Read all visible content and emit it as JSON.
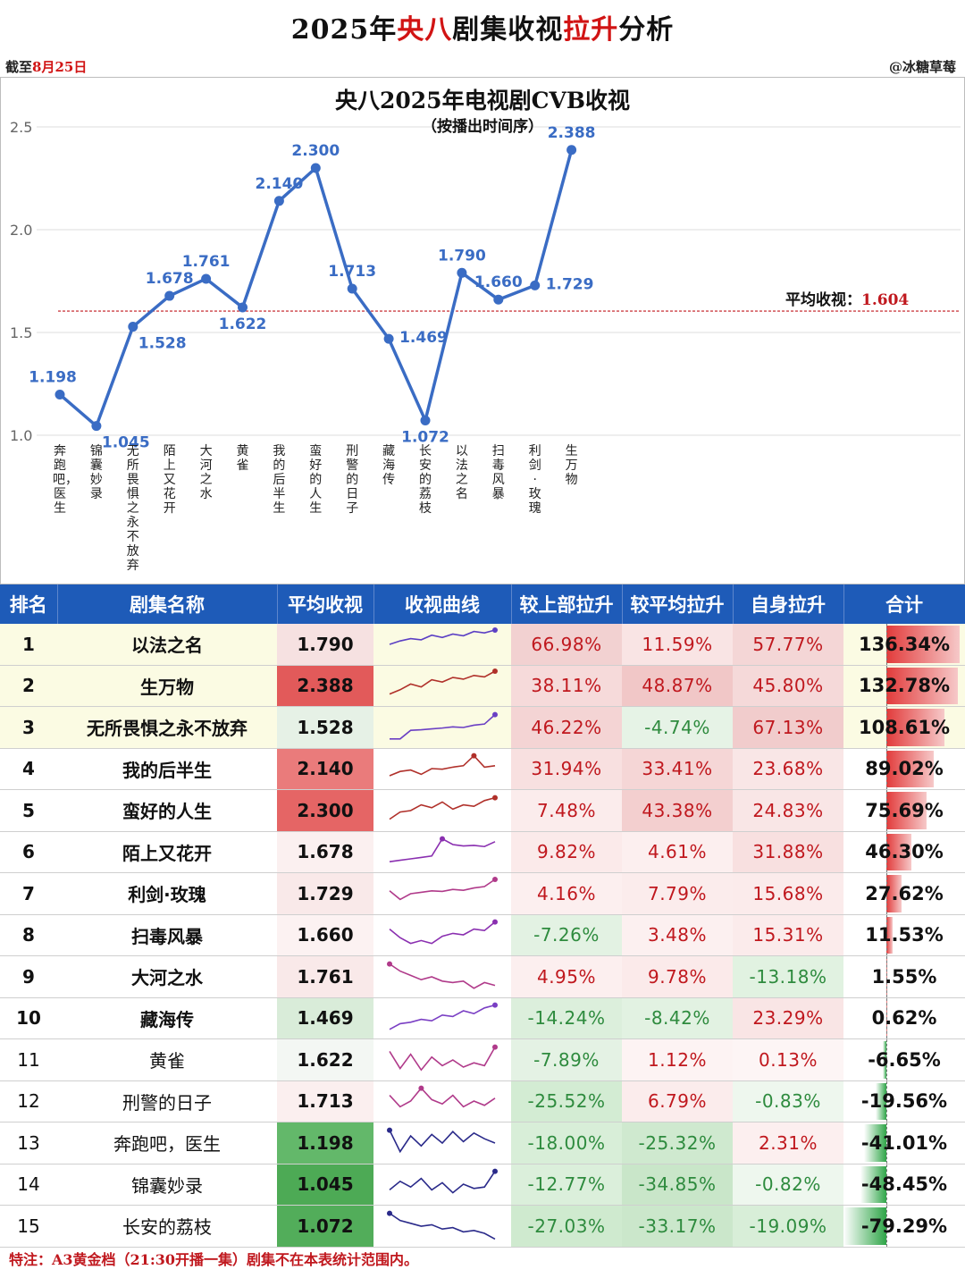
{
  "header": {
    "title_parts": [
      "2025年",
      "央八",
      "剧集收视",
      "拉升",
      "分析"
    ],
    "date_prefix": "截至",
    "date_value": "8月25日",
    "credit": "@冰糖草莓"
  },
  "chart_data": {
    "type": "line",
    "title": "央八2025年电视剧CVB收视",
    "subtitle": "（按播出时间序）",
    "categories": [
      "奔跑吧，医生",
      "锦囊妙录",
      "无所畏惧之永不放弃",
      "陌上又花开",
      "大河之水",
      "黄雀",
      "我的后半生",
      "蛮好的人生",
      "刑警的日子",
      "藏海传",
      "长安的荔枝",
      "以法之名",
      "扫毒风暴",
      "利剑·玫瑰",
      "生万物"
    ],
    "values": [
      1.198,
      1.045,
      1.528,
      1.678,
      1.761,
      1.622,
      2.14,
      2.3,
      1.713,
      1.469,
      1.072,
      1.79,
      1.66,
      1.729,
      2.388
    ],
    "labels": [
      "1.198",
      "1.045",
      "1.528",
      "1.678",
      "1.761",
      "1.622",
      "2.140",
      "2.300",
      "1.713",
      "1.469",
      "1.072",
      "1.790",
      "1.660",
      "1.729",
      "2.388"
    ],
    "label_pos": [
      "above",
      "below",
      "below",
      "above",
      "above",
      "below",
      "above",
      "above",
      "above",
      "right",
      "below",
      "above",
      "above",
      "right",
      "above"
    ],
    "yticks": [
      "1.0",
      "1.5",
      "2.0",
      "2.5"
    ],
    "ylim": [
      1.0,
      2.5
    ],
    "grid": true,
    "average": 1.604,
    "average_label": "平均收视：",
    "average_value": "1.604",
    "line_color": "#3a6cc4",
    "avg_color": "#c0181e"
  },
  "table": {
    "headers": [
      "排名",
      "剧集名称",
      "平均收视",
      "收视曲线",
      "较上部拉升",
      "较平均拉升",
      "自身拉升",
      "合计"
    ],
    "rows": [
      {
        "rank": "1",
        "name": "以法之名",
        "rating": "1.790",
        "prev": "66.98%",
        "avg": "11.59%",
        "self": "57.77%",
        "total": "136.34%",
        "total_v": 136.34,
        "rating_color": "#f6e1e1",
        "prev_color": "#f2d1d1",
        "avg_color": "#f9e4e4",
        "self_color": "#f4d6d6",
        "row_bg": "#fbfbe3",
        "spark": [
          0.5,
          0.62,
          0.7,
          0.66,
          0.82,
          0.74,
          0.86,
          0.8,
          0.95,
          0.9,
          1.0
        ],
        "spark_color": "#5b3fc4",
        "name_color": "#000",
        "bold": true
      },
      {
        "rank": "2",
        "name": "生万物",
        "rating": "2.388",
        "prev": "38.11%",
        "avg": "48.87%",
        "self": "45.80%",
        "total": "132.78%",
        "total_v": 132.78,
        "rating_color": "#e25a5a",
        "prev_color": "#f6dada",
        "avg_color": "#f1c7c7",
        "self_color": "#f5d9d9",
        "row_bg": "#fbfbe3",
        "spark": [
          0.2,
          0.35,
          0.55,
          0.45,
          0.7,
          0.62,
          0.78,
          0.72,
          0.85,
          0.8,
          1.0
        ],
        "spark_color": "#b0302a",
        "name_color": "#000",
        "bold": true
      },
      {
        "rank": "3",
        "name": "无所畏惧之永不放弃",
        "rating": "1.528",
        "prev": "46.22%",
        "avg": "-4.74%",
        "self": "67.13%",
        "total": "108.61%",
        "total_v": 108.61,
        "rating_color": "#e6f1e6",
        "prev_color": "#f4d4d4",
        "avg_color": "#e6f3e6",
        "self_color": "#f1cccc",
        "row_bg": "#fbfbe3",
        "spark": [
          0.1,
          0.1,
          0.4,
          0.42,
          0.45,
          0.48,
          0.52,
          0.5,
          0.58,
          0.62,
          0.95
        ],
        "spark_color": "#6a3fc4",
        "name_color": "#000",
        "bold": true
      },
      {
        "rank": "4",
        "name": "我的后半生",
        "rating": "2.140",
        "prev": "31.94%",
        "avg": "33.41%",
        "self": "23.68%",
        "total": "89.02%",
        "total_v": 89.02,
        "rating_color": "#ea7b7b",
        "prev_color": "#f8e0e0",
        "avg_color": "#f5d6d6",
        "self_color": "#f9e6e6",
        "row_bg": "#ffffff",
        "spark": [
          0.25,
          0.4,
          0.45,
          0.3,
          0.5,
          0.48,
          0.55,
          0.6,
          0.95,
          0.55,
          0.6
        ],
        "spark_color": "#b0302a",
        "name_color": "#000",
        "bold": true
      },
      {
        "rank": "5",
        "name": "蛮好的人生",
        "rating": "2.300",
        "prev": "7.48%",
        "avg": "43.38%",
        "self": "24.83%",
        "total": "75.69%",
        "total_v": 75.69,
        "rating_color": "#e56565",
        "prev_color": "#fbecec",
        "avg_color": "#f3cfcf",
        "self_color": "#f9e6e6",
        "row_bg": "#ffffff",
        "spark": [
          0.2,
          0.45,
          0.5,
          0.7,
          0.6,
          0.8,
          0.55,
          0.7,
          0.65,
          0.85,
          0.95
        ],
        "spark_color": "#b0302a",
        "name_color": "#000",
        "bold": true
      },
      {
        "rank": "6",
        "name": "陌上又花开",
        "rating": "1.678",
        "prev": "9.82%",
        "avg": "4.61%",
        "self": "31.88%",
        "total": "46.30%",
        "total_v": 46.3,
        "rating_color": "#fbf0f0",
        "prev_color": "#fbeaea",
        "avg_color": "#fcefef",
        "self_color": "#f8e0e0",
        "row_bg": "#ffffff",
        "spark": [
          0.15,
          0.2,
          0.25,
          0.3,
          0.35,
          0.95,
          0.75,
          0.7,
          0.72,
          0.68,
          0.85
        ],
        "spark_color": "#8a2fb0",
        "name_color": "#000",
        "bold": true
      },
      {
        "rank": "7",
        "name": "利剑·玫瑰",
        "rating": "1.729",
        "prev": "4.16%",
        "avg": "7.79%",
        "self": "15.68%",
        "total": "27.62%",
        "total_v": 27.62,
        "rating_color": "#f9e9e9",
        "prev_color": "#fcefef",
        "avg_color": "#fbecec",
        "self_color": "#fbebeb",
        "row_bg": "#ffffff",
        "spark": [
          0.6,
          0.3,
          0.5,
          0.55,
          0.6,
          0.58,
          0.65,
          0.62,
          0.7,
          0.75,
          1.0
        ],
        "spark_color": "#b03a8a",
        "name_color": "#000",
        "bold": true
      },
      {
        "rank": "8",
        "name": "扫毒风暴",
        "rating": "1.660",
        "prev": "-7.26%",
        "avg": "3.48%",
        "self": "15.31%",
        "total": "11.53%",
        "total_v": 11.53,
        "rating_color": "#fcf2f2",
        "prev_color": "#e3f2e3",
        "avg_color": "#fcf0f0",
        "self_color": "#fbebeb",
        "row_bg": "#ffffff",
        "spark": [
          0.7,
          0.4,
          0.2,
          0.3,
          0.2,
          0.45,
          0.55,
          0.5,
          0.7,
          0.65,
          0.95
        ],
        "spark_color": "#8a2fb0",
        "name_color": "#000",
        "bold": true
      },
      {
        "rank": "9",
        "name": "大河之水",
        "rating": "1.761",
        "prev": "4.95%",
        "avg": "9.78%",
        "self": "-13.18%",
        "total": "1.55%",
        "total_v": 1.55,
        "rating_color": "#f9e9e9",
        "prev_color": "#fcefef",
        "avg_color": "#fbeaea",
        "self_color": "#e1f2e1",
        "row_bg": "#ffffff",
        "spark": [
          0.95,
          0.7,
          0.55,
          0.4,
          0.5,
          0.35,
          0.3,
          0.35,
          0.1,
          0.3,
          0.2
        ],
        "spark_color": "#b03a8a",
        "name_color": "#000",
        "bold": true
      },
      {
        "rank": "10",
        "name": "藏海传",
        "rating": "1.469",
        "prev": "-14.24%",
        "avg": "-8.42%",
        "self": "23.29%",
        "total": "0.62%",
        "total_v": 0.62,
        "rating_color": "#d9ecd9",
        "prev_color": "#dcefdc",
        "avg_color": "#e2f2e2",
        "self_color": "#f9e5e5",
        "row_bg": "#ffffff",
        "spark": [
          0.1,
          0.3,
          0.35,
          0.45,
          0.4,
          0.6,
          0.55,
          0.75,
          0.65,
          0.85,
          0.95
        ],
        "spark_color": "#7a3fc4",
        "name_color": "#000",
        "bold": true
      },
      {
        "rank": "11",
        "name": "黄雀",
        "rating": "1.622",
        "prev": "-7.89%",
        "avg": "1.12%",
        "self": "0.13%",
        "total": "-6.65%",
        "total_v": -6.65,
        "rating_color": "#f3f7f3",
        "prev_color": "#e4f2e4",
        "avg_color": "#fdf3f3",
        "self_color": "#fdf5f5",
        "row_bg": "#ffffff",
        "spark": [
          0.8,
          0.2,
          0.7,
          0.15,
          0.6,
          0.3,
          0.5,
          0.25,
          0.4,
          0.3,
          0.95
        ],
        "spark_color": "#b03a8a",
        "name_color": "#000",
        "bold": false
      },
      {
        "rank": "12",
        "name": "刑警的日子",
        "rating": "1.713",
        "prev": "-25.52%",
        "avg": "6.79%",
        "self": "-0.83%",
        "total": "-19.56%",
        "total_v": -19.56,
        "rating_color": "#fbefef",
        "prev_color": "#d3ecd3",
        "avg_color": "#fbecec",
        "self_color": "#eef7ee",
        "row_bg": "#ffffff",
        "spark": [
          0.7,
          0.3,
          0.5,
          0.95,
          0.55,
          0.4,
          0.7,
          0.3,
          0.5,
          0.35,
          0.6
        ],
        "spark_color": "#b03a8a",
        "name_color": "#000",
        "bold": false
      },
      {
        "rank": "13",
        "name": "奔跑吧，医生",
        "rating": "1.198",
        "prev": "-18.00%",
        "avg": "-25.32%",
        "self": "2.31%",
        "total": "-41.01%",
        "total_v": -41.01,
        "rating_color": "#63b86a",
        "prev_color": "#d8eed8",
        "avg_color": "#cfe9cf",
        "self_color": "#fcefef",
        "row_bg": "#ffffff",
        "spark": [
          0.95,
          0.2,
          0.75,
          0.4,
          0.8,
          0.5,
          0.9,
          0.55,
          0.85,
          0.65,
          0.5
        ],
        "spark_color": "#2a2a8a",
        "name_color": "#000",
        "bold": false
      },
      {
        "rank": "14",
        "name": "锦囊妙录",
        "rating": "1.045",
        "prev": "-12.77%",
        "avg": "-34.85%",
        "self": "-0.82%",
        "total": "-48.45%",
        "total_v": -48.45,
        "rating_color": "#4daa55",
        "prev_color": "#dbefdb",
        "avg_color": "#c9e6c9",
        "self_color": "#eef7ee",
        "row_bg": "#ffffff",
        "spark": [
          0.3,
          0.6,
          0.4,
          0.7,
          0.3,
          0.55,
          0.2,
          0.5,
          0.35,
          0.4,
          0.95
        ],
        "spark_color": "#2a2a8a",
        "name_color": "#000",
        "bold": false
      },
      {
        "rank": "15",
        "name": "长安的荔枝",
        "rating": "1.072",
        "prev": "-27.03%",
        "avg": "-33.17%",
        "self": "-19.09%",
        "total": "-79.29%",
        "total_v": -79.29,
        "rating_color": "#52ad5a",
        "prev_color": "#cfeacf",
        "avg_color": "#cbe7cb",
        "self_color": "#d8eed8",
        "row_bg": "#ffffff",
        "spark": [
          0.95,
          0.7,
          0.6,
          0.5,
          0.55,
          0.4,
          0.45,
          0.3,
          0.35,
          0.25,
          0.05
        ],
        "spark_color": "#2a2a8a",
        "name_color": "#000",
        "bold": false
      }
    ]
  },
  "footnote": "特注：A3黄金档（21:30开播一集）剧集不在本表统计范围内。"
}
